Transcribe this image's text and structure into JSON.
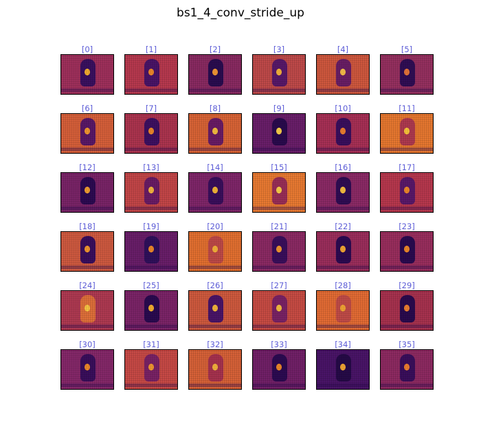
{
  "figure": {
    "title": "bs1_4_conv_stride_up",
    "colormap": "inferno",
    "label_color": "#5b5bd6",
    "channels": [
      {
        "label": "[0]",
        "bg": "#a0305c",
        "fig": "#3a1060",
        "hot": "#f6b030"
      },
      {
        "label": "[1]",
        "bg": "#b8394f",
        "fig": "#4a1468",
        "hot": "#f08a2a"
      },
      {
        "label": "[2]",
        "bg": "#8a2a62",
        "fig": "#2a0c50",
        "hot": "#f59a35"
      },
      {
        "label": "[3]",
        "bg": "#c04a4a",
        "fig": "#58186a",
        "hot": "#f7b43c"
      },
      {
        "label": "[4]",
        "bg": "#d0583e",
        "fig": "#6a1e66",
        "hot": "#f9c04a"
      },
      {
        "label": "[5]",
        "bg": "#963060",
        "fig": "#300d55",
        "hot": "#e8763a"
      },
      {
        "label": "[6]",
        "bg": "#d8603a",
        "fig": "#5a1868",
        "hot": "#f59a30"
      },
      {
        "label": "[7]",
        "bg": "#ad344f",
        "fig": "#3e1062",
        "hot": "#f08a2a"
      },
      {
        "label": "[8]",
        "bg": "#da6436",
        "fig": "#6a1c66",
        "hot": "#f8c040"
      },
      {
        "label": "[9]",
        "bg": "#6a1e6a",
        "fig": "#2a0a4e",
        "hot": "#fcd24c"
      },
      {
        "label": "[10]",
        "bg": "#a83056",
        "fig": "#3a0e5e",
        "hot": "#f08030"
      },
      {
        "label": "[11]",
        "bg": "#e87830",
        "fig": "#b03a50",
        "hot": "#fcc83a"
      },
      {
        "label": "[12]",
        "bg": "#7a2468",
        "fig": "#2c0a52",
        "hot": "#f3a032"
      },
      {
        "label": "[13]",
        "bg": "#c44648",
        "fig": "#6a1c66",
        "hot": "#f8b840"
      },
      {
        "label": "[14]",
        "bg": "#80266a",
        "fig": "#3a0e5c",
        "hot": "#f6b838"
      },
      {
        "label": "[15]",
        "bg": "#ea7a32",
        "fig": "#9a2e58",
        "hot": "#fcd04a"
      },
      {
        "label": "[16]",
        "bg": "#8c2a66",
        "fig": "#300c54",
        "hot": "#fac040"
      },
      {
        "label": "[17]",
        "bg": "#b8384e",
        "fig": "#5a186a",
        "hot": "#f08a2a"
      },
      {
        "label": "[18]",
        "bg": "#d05a40",
        "fig": "#3a0e5e",
        "hot": "#f59a30"
      },
      {
        "label": "[19]",
        "bg": "#6a1e6a",
        "fig": "#30105c",
        "hot": "#f08a2a"
      },
      {
        "label": "[20]",
        "bg": "#e47030",
        "fig": "#c04a48",
        "hot": "#f8b43a"
      },
      {
        "label": "[21]",
        "bg": "#8c2a64",
        "fig": "#3a0e5c",
        "hot": "#f59a30"
      },
      {
        "label": "[22]",
        "bg": "#9c2e5c",
        "fig": "#2c0a52",
        "hot": "#f6a834"
      },
      {
        "label": "[23]",
        "bg": "#9a2e5e",
        "fig": "#2a0a50",
        "hot": "#f08a2a"
      },
      {
        "label": "[24]",
        "bg": "#b03a52",
        "fig": "#e0703a",
        "hot": "#fbc844"
      },
      {
        "label": "[25]",
        "bg": "#7c2468",
        "fig": "#2a0a50",
        "hot": "#f6b030"
      },
      {
        "label": "[26]",
        "bg": "#d05a3e",
        "fig": "#4a1468",
        "hot": "#f7b83c"
      },
      {
        "label": "[27]",
        "bg": "#c84c44",
        "fig": "#7a2266",
        "hot": "#f8c040"
      },
      {
        "label": "[28]",
        "bg": "#e46c34",
        "fig": "#c24c48",
        "hot": "#f6a834"
      },
      {
        "label": "[29]",
        "bg": "#a8324f",
        "fig": "#2a0a4e",
        "hot": "#f08030"
      },
      {
        "label": "[30]",
        "bg": "#86286a",
        "fig": "#3a0e5c",
        "hot": "#f08a2a"
      },
      {
        "label": "[31]",
        "bg": "#c84a46",
        "fig": "#7a2266",
        "hot": "#f59a30"
      },
      {
        "label": "[32]",
        "bg": "#d86238",
        "fig": "#a8324f",
        "hot": "#f7b43c"
      },
      {
        "label": "[33]",
        "bg": "#722068",
        "fig": "#2c0a52",
        "hot": "#f08a2a"
      },
      {
        "label": "[34]",
        "bg": "#4a1468",
        "fig": "#260a48",
        "hot": "#f6a834"
      },
      {
        "label": "[35]",
        "bg": "#8e2a62",
        "fig": "#3a0e5c",
        "hot": "#f08030"
      }
    ]
  }
}
